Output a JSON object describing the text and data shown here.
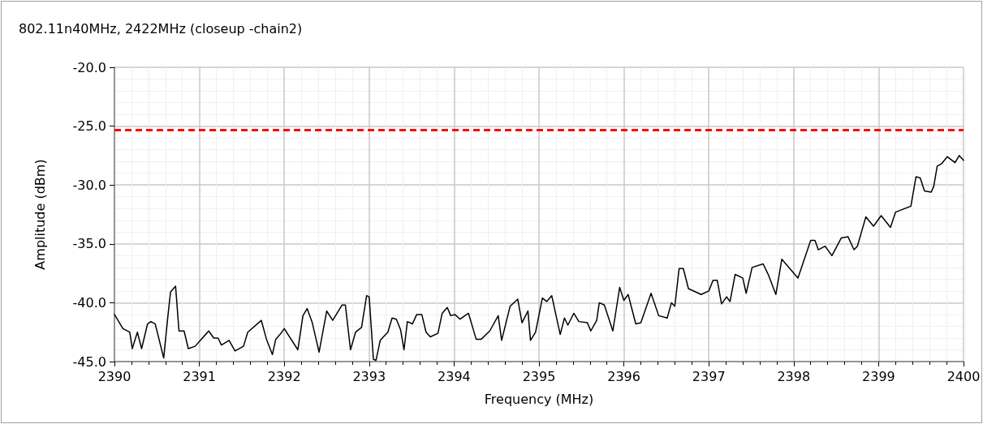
{
  "chart_data": {
    "type": "line",
    "title": "802.11n40MHz, 2422MHz (closeup -chain2)",
    "xlabel": "Frequency (MHz)",
    "ylabel": "Amplitude (dBm)",
    "xlim": [
      2390,
      2400
    ],
    "xticks": [
      2390,
      2391,
      2392,
      2393,
      2394,
      2395,
      2396,
      2397,
      2398,
      2399,
      2400
    ],
    "ylim": [
      -45,
      -20
    ],
    "yticks": [
      {
        "value": -45,
        "label": "-45.0"
      },
      {
        "value": -40,
        "label": "-40.0"
      },
      {
        "value": -35,
        "label": "-35.0"
      },
      {
        "value": -30,
        "label": "-30.0"
      },
      {
        "value": -25,
        "label": "-25.0"
      },
      {
        "value": -20,
        "label": "-20.0"
      }
    ],
    "grid": true,
    "marker": "none",
    "line_style": "solid",
    "ref_lines": [
      {
        "axis": "y",
        "value": -25.3,
        "color": "#ff0000",
        "line_style": "dashed"
      }
    ],
    "series": [
      {
        "color": "#000000",
        "x": [
          2390.0,
          2390.1,
          2390.18,
          2390.21,
          2390.27,
          2390.32,
          2390.39,
          2390.43,
          2390.48,
          2390.58,
          2390.63,
          2390.66,
          2390.72,
          2390.76,
          2390.82,
          2390.87,
          2390.95,
          2391.11,
          2391.17,
          2391.22,
          2391.26,
          2391.35,
          2391.42,
          2391.52,
          2391.57,
          2391.73,
          2391.79,
          2391.86,
          2391.9,
          2391.95,
          2392.0,
          2392.16,
          2392.22,
          2392.27,
          2392.33,
          2392.41,
          2392.5,
          2392.57,
          2392.68,
          2392.72,
          2392.78,
          2392.84,
          2392.91,
          2392.97,
          2393.0,
          2393.05,
          2393.08,
          2393.13,
          2393.22,
          2393.27,
          2393.32,
          2393.37,
          2393.41,
          2393.45,
          2393.51,
          2393.56,
          2393.62,
          2393.67,
          2393.72,
          2393.81,
          2393.86,
          2393.92,
          2393.96,
          2394.01,
          2394.07,
          2394.17,
          2394.26,
          2394.32,
          2394.42,
          2394.52,
          2394.56,
          2394.66,
          2394.75,
          2394.8,
          2394.87,
          2394.9,
          2394.96,
          2395.04,
          2395.09,
          2395.15,
          2395.25,
          2395.3,
          2395.34,
          2395.41,
          2395.47,
          2395.57,
          2395.61,
          2395.68,
          2395.71,
          2395.77,
          2395.87,
          2395.95,
          2396.0,
          2396.05,
          2396.14,
          2396.2,
          2396.32,
          2396.41,
          2396.51,
          2396.56,
          2396.6,
          2396.65,
          2396.7,
          2396.76,
          2396.91,
          2397.0,
          2397.05,
          2397.1,
          2397.15,
          2397.21,
          2397.25,
          2397.31,
          2397.4,
          2397.44,
          2397.51,
          2397.64,
          2397.7,
          2397.79,
          2397.86,
          2398.05,
          2398.2,
          2398.25,
          2398.29,
          2398.37,
          2398.45,
          2398.56,
          2398.64,
          2398.71,
          2398.75,
          2398.85,
          2398.94,
          2399.03,
          2399.14,
          2399.2,
          2399.38,
          2399.44,
          2399.49,
          2399.54,
          2399.62,
          2399.65,
          2399.69,
          2399.74,
          2399.81,
          2399.9,
          2399.95,
          2400.0
        ],
        "values": [
          -41.0,
          -42.2,
          -42.5,
          -43.9,
          -42.5,
          -43.9,
          -41.8,
          -41.6,
          -41.8,
          -44.7,
          -41.1,
          -39.1,
          -38.6,
          -42.4,
          -42.4,
          -43.9,
          -43.7,
          -42.4,
          -43.0,
          -43.0,
          -43.6,
          -43.2,
          -44.1,
          -43.7,
          -42.5,
          -41.5,
          -43.1,
          -44.4,
          -43.1,
          -42.7,
          -42.2,
          -44.0,
          -41.1,
          -40.5,
          -41.7,
          -44.2,
          -40.7,
          -41.5,
          -40.2,
          -40.2,
          -44.0,
          -42.5,
          -42.1,
          -39.4,
          -39.5,
          -44.8,
          -44.9,
          -43.2,
          -42.5,
          -41.3,
          -41.4,
          -42.3,
          -44.0,
          -41.6,
          -41.8,
          -41.0,
          -41.0,
          -42.5,
          -42.9,
          -42.6,
          -40.9,
          -40.4,
          -41.1,
          -41.0,
          -41.4,
          -40.9,
          -43.1,
          -43.1,
          -42.4,
          -41.1,
          -43.2,
          -40.3,
          -39.7,
          -41.7,
          -40.7,
          -43.2,
          -42.5,
          -39.6,
          -39.9,
          -39.4,
          -42.7,
          -41.3,
          -41.9,
          -40.9,
          -41.6,
          -41.7,
          -42.4,
          -41.5,
          -40.0,
          -40.2,
          -42.4,
          -38.7,
          -39.8,
          -39.3,
          -41.8,
          -41.7,
          -39.2,
          -41.1,
          -41.3,
          -40.0,
          -40.3,
          -37.1,
          -37.1,
          -38.8,
          -39.3,
          -39.0,
          -38.1,
          -38.1,
          -40.1,
          -39.5,
          -39.9,
          -37.6,
          -37.9,
          -39.2,
          -37.0,
          -36.7,
          -37.6,
          -39.3,
          -36.3,
          -37.9,
          -34.7,
          -34.7,
          -35.5,
          -35.2,
          -36.0,
          -34.5,
          -34.4,
          -35.5,
          -35.2,
          -32.7,
          -33.5,
          -32.6,
          -33.6,
          -32.3,
          -31.8,
          -29.3,
          -29.4,
          -30.5,
          -30.6,
          -30.1,
          -28.4,
          -28.2,
          -27.6,
          -28.1,
          -27.5,
          -27.9
        ]
      }
    ]
  }
}
